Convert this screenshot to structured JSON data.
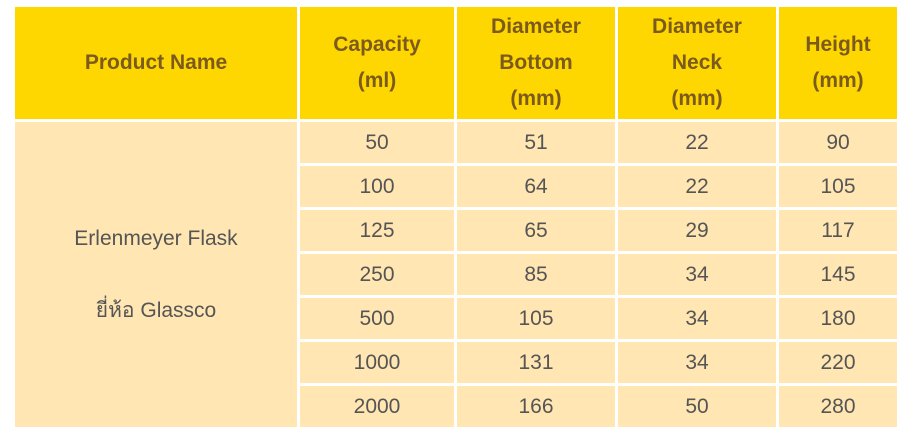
{
  "headers": [
    [
      "Product Name"
    ],
    [
      "Capacity",
      "(ml)"
    ],
    [
      "Diameter",
      "Bottom",
      "(mm)"
    ],
    [
      "Diameter",
      "Neck",
      "(mm)"
    ],
    [
      "Height",
      "(mm)"
    ]
  ],
  "product": {
    "name": "Erlenmeyer Flask",
    "brand": "ยี่ห้อ Glassco"
  },
  "rows": [
    [
      "50",
      "51",
      "22",
      "90"
    ],
    [
      "100",
      "64",
      "22",
      "105"
    ],
    [
      "125",
      "65",
      "29",
      "117"
    ],
    [
      "250",
      "85",
      "34",
      "145"
    ],
    [
      "500",
      "105",
      "34",
      "180"
    ],
    [
      "1000",
      "131",
      "34",
      "220"
    ],
    [
      "2000",
      "166",
      "50",
      "280"
    ]
  ]
}
